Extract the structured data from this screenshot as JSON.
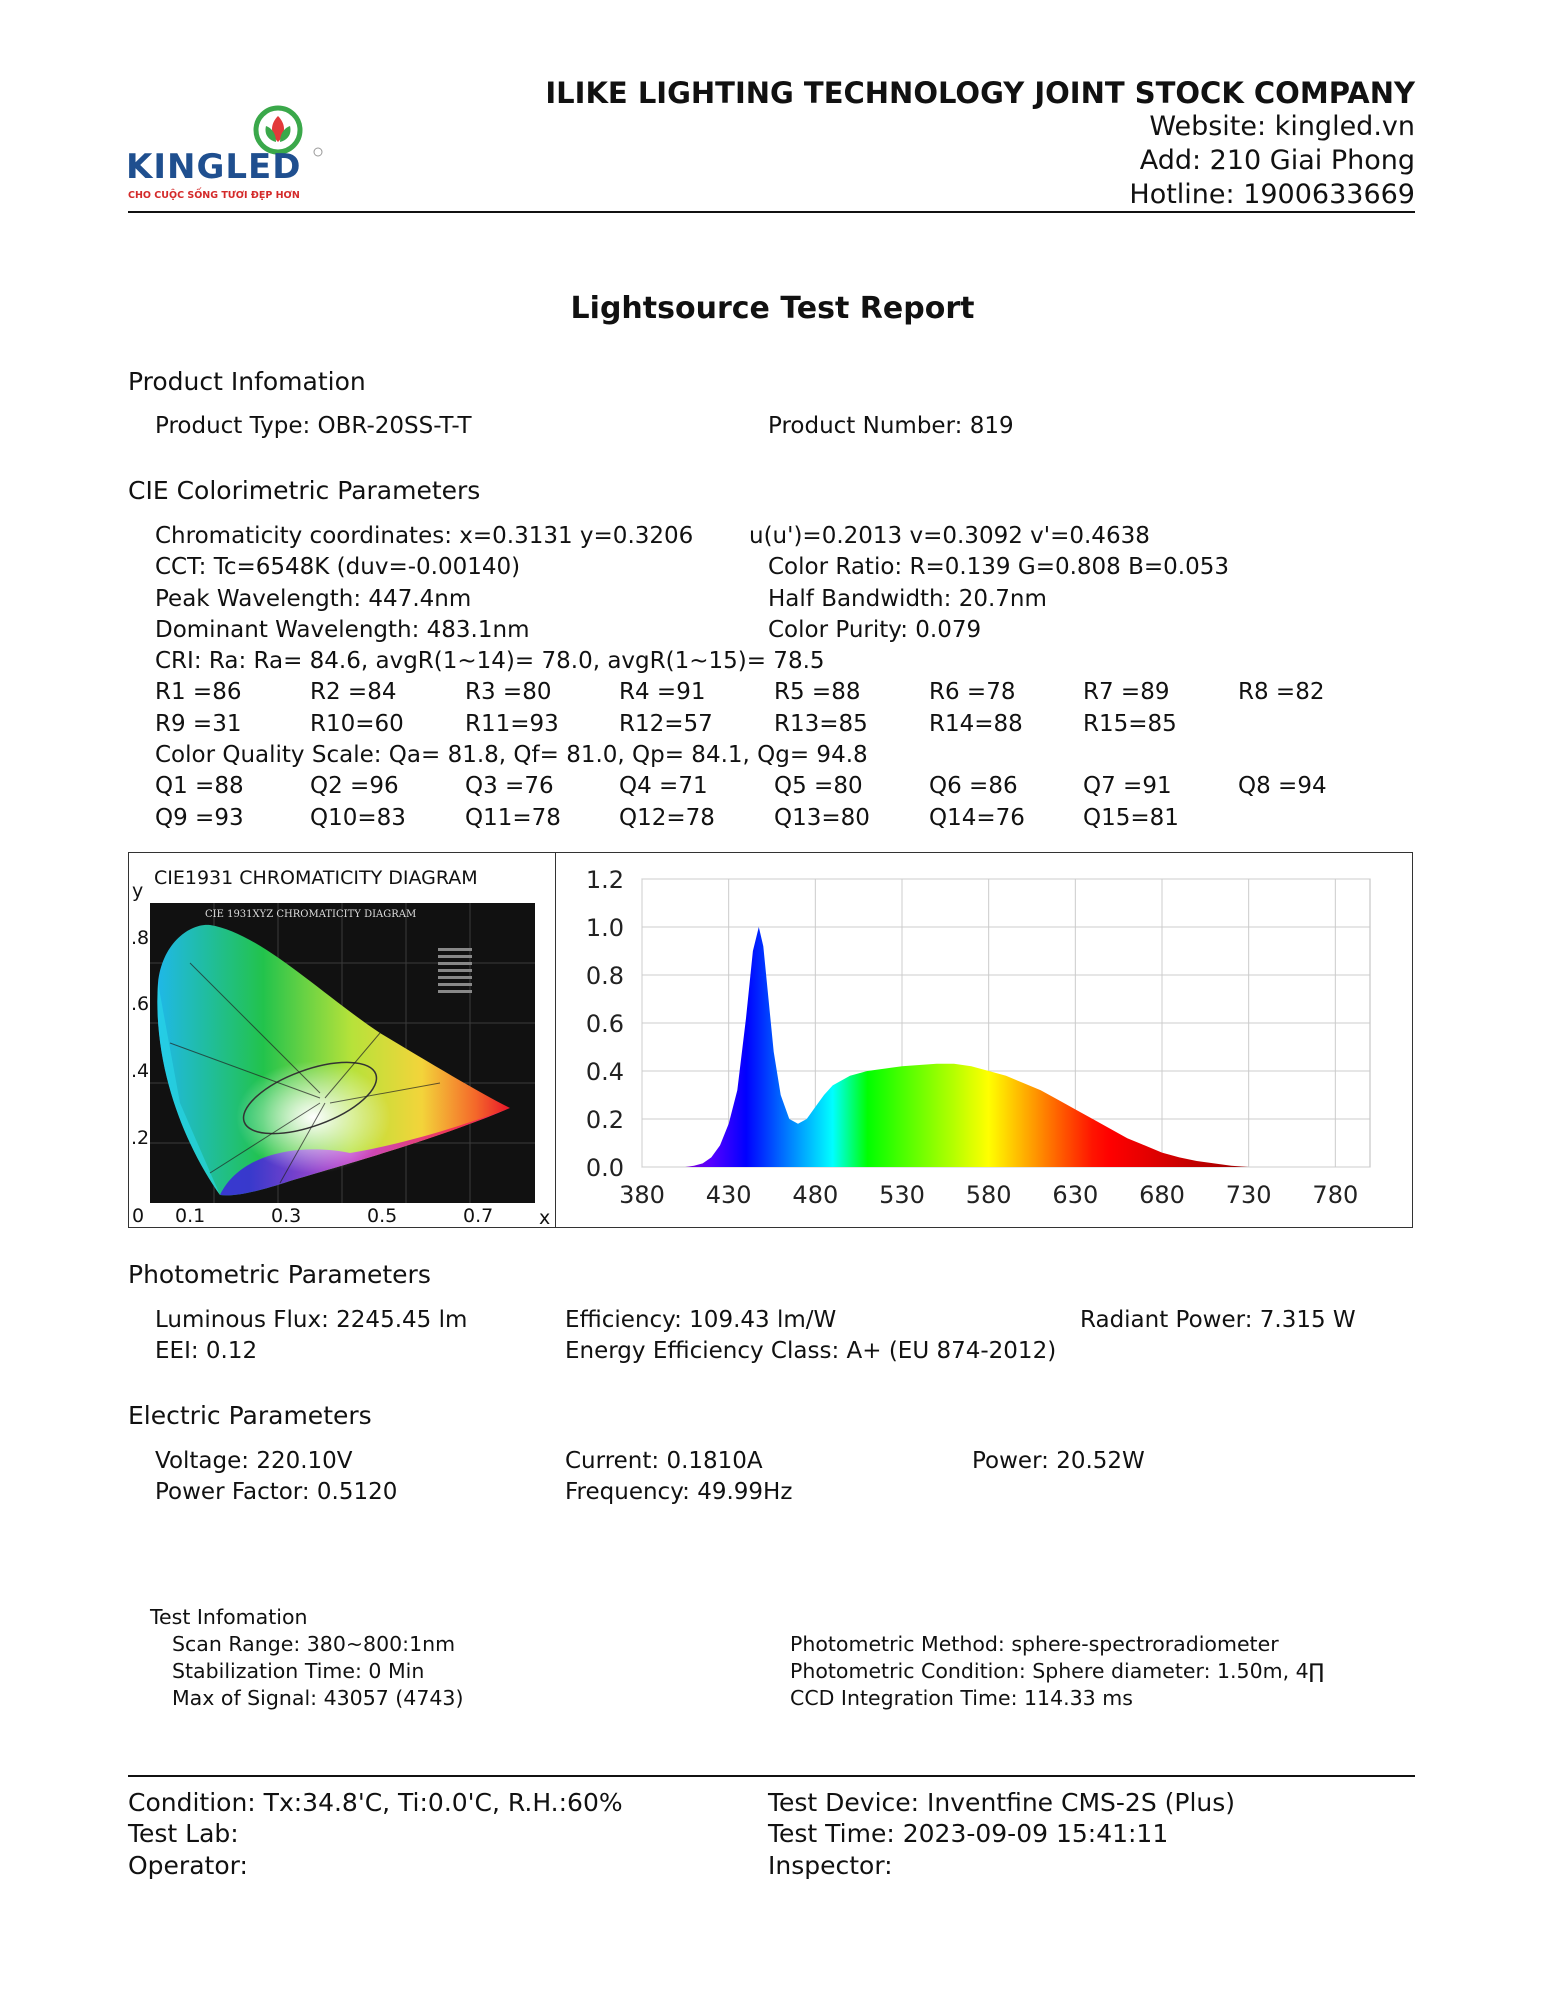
{
  "header": {
    "company": "ILIKE LIGHTING TECHNOLOGY JOINT STOCK COMPANY",
    "website": "Website: kingled.vn",
    "address": "Add: 210 Giai Phong",
    "hotline": "Hotline: 1900633669",
    "logo_text": "KINGLED",
    "logo_tagline": "CHO CUỘC SỐNG TƯƠI ĐẸP HƠN"
  },
  "title": "Lightsource Test Report",
  "product": {
    "heading": "Product Infomation",
    "type": "Product Type: OBR-20SS-T-T",
    "number": "Product Number: 819"
  },
  "cie": {
    "heading": "CIE Colorimetric Parameters",
    "chromaticity": "Chromaticity coordinates: x=0.3131 y=0.3206",
    "uv": "u(u')=0.2013 v=0.3092 v'=0.4638",
    "cct": "CCT: Tc=6548K (duv=-0.00140)",
    "color_ratio": "Color Ratio: R=0.139  G=0.808  B=0.053",
    "peak": "Peak Wavelength: 447.4nm",
    "half_bw": "Half Bandwidth: 20.7nm",
    "dominant": "Dominant Wavelength: 483.1nm",
    "purity": "Color Purity: 0.079",
    "cri": "CRI: Ra: Ra= 84.6, avgR(1~14)= 78.0, avgR(1~15)= 78.5",
    "r_row1": [
      "R1 =86",
      "R2 =84",
      "R3 =80",
      "R4 =91",
      "R5 =88",
      "R6 =78",
      "R7 =89",
      "R8 =82"
    ],
    "r_row2": [
      "R9 =31",
      "R10=60",
      "R11=93",
      "R12=57",
      "R13=85",
      "R14=88",
      "R15=85"
    ],
    "cqs": "Color Quality Scale: Qa= 81.8, Qf= 81.0, Qp= 84.1, Qg= 94.8",
    "q_row1": [
      "Q1 =88",
      "Q2 =96",
      "Q3 =76",
      "Q4 =71",
      "Q5 =80",
      "Q6 =86",
      "Q7 =91",
      "Q8 =94"
    ],
    "q_row2": [
      "Q9 =93",
      "Q10=83",
      "Q11=78",
      "Q12=78",
      "Q13=80",
      "Q14=76",
      "Q15=81"
    ]
  },
  "diagram": {
    "title": "CIE1931 CHROMATICITY DIAGRAM",
    "inner_title": "CIE 1931XYZ CHROMATICITY DIAGRAM",
    "y_label": "y",
    "x_label": "x",
    "y_ticks": [
      ".8",
      ".6",
      ".4",
      ".2"
    ],
    "x_ticks": [
      "0",
      "0.1",
      "0.3",
      "0.5",
      "0.7"
    ]
  },
  "chart_data": {
    "type": "area",
    "title": "",
    "xlabel": "",
    "ylabel": "",
    "xlim": [
      380,
      800
    ],
    "ylim": [
      0,
      1.2
    ],
    "x_ticks": [
      380,
      430,
      480,
      530,
      580,
      630,
      680,
      730,
      780
    ],
    "y_ticks": [
      "0.0",
      "0.2",
      "0.4",
      "0.6",
      "0.8",
      "1.0",
      "1.2"
    ],
    "grid": true,
    "series": [
      {
        "x": [
          405,
          410,
          415,
          420,
          425,
          430,
          435,
          440,
          444,
          447.4,
          450,
          453,
          456,
          460,
          465,
          470,
          475,
          480,
          485,
          490,
          500,
          510,
          520,
          530,
          540,
          550,
          560,
          570,
          580,
          590,
          600,
          610,
          620,
          630,
          640,
          650,
          660,
          670,
          680,
          690,
          700,
          710,
          720,
          730
        ],
        "values": [
          0.0,
          0.005,
          0.015,
          0.04,
          0.09,
          0.18,
          0.32,
          0.62,
          0.9,
          1.0,
          0.92,
          0.7,
          0.48,
          0.3,
          0.2,
          0.18,
          0.2,
          0.25,
          0.3,
          0.34,
          0.38,
          0.4,
          0.41,
          0.42,
          0.425,
          0.43,
          0.43,
          0.42,
          0.4,
          0.38,
          0.35,
          0.32,
          0.28,
          0.24,
          0.2,
          0.16,
          0.12,
          0.09,
          0.06,
          0.04,
          0.025,
          0.015,
          0.005,
          0.0
        ]
      }
    ]
  },
  "photometric": {
    "heading": "Photometric Parameters",
    "flux": "Luminous Flux: 2245.45 lm",
    "efficiency": "Efficiency: 109.43 lm/W",
    "radiant": "Radiant Power: 7.315 W",
    "eei": "EEI:  0.12",
    "eec": "Energy Efficiency Class: A+ (EU 874-2012)"
  },
  "electric": {
    "heading": "Electric Parameters",
    "voltage": "Voltage: 220.10V",
    "current": "Current: 0.1810A",
    "power": "Power: 20.52W",
    "pf": "Power Factor: 0.5120",
    "frequency": "Frequency: 49.99Hz"
  },
  "test_info": {
    "heading": "Test Infomation",
    "scan": "Scan Range: 380~800:1nm",
    "stabilization": "Stabilization Time: 0 Min",
    "max_signal": "Max of Signal: 43057 (4743)",
    "method": "Photometric Method: sphere-spectroradiometer",
    "condition": "Photometric Condition: Sphere diameter: 1.50m, 4∏",
    "ccd": "CCD Integration Time: 114.33 ms"
  },
  "footer": {
    "condition": "Condition: Tx:34.8'C, Ti:0.0'C, R.H.:60%",
    "device": "Test Device: Inventfine CMS-2S (Plus)",
    "lab": "Test Lab:",
    "time": "Test Time: 2023-09-09 15:41:11",
    "operator": "Operator:",
    "inspector": "Inspector:"
  }
}
